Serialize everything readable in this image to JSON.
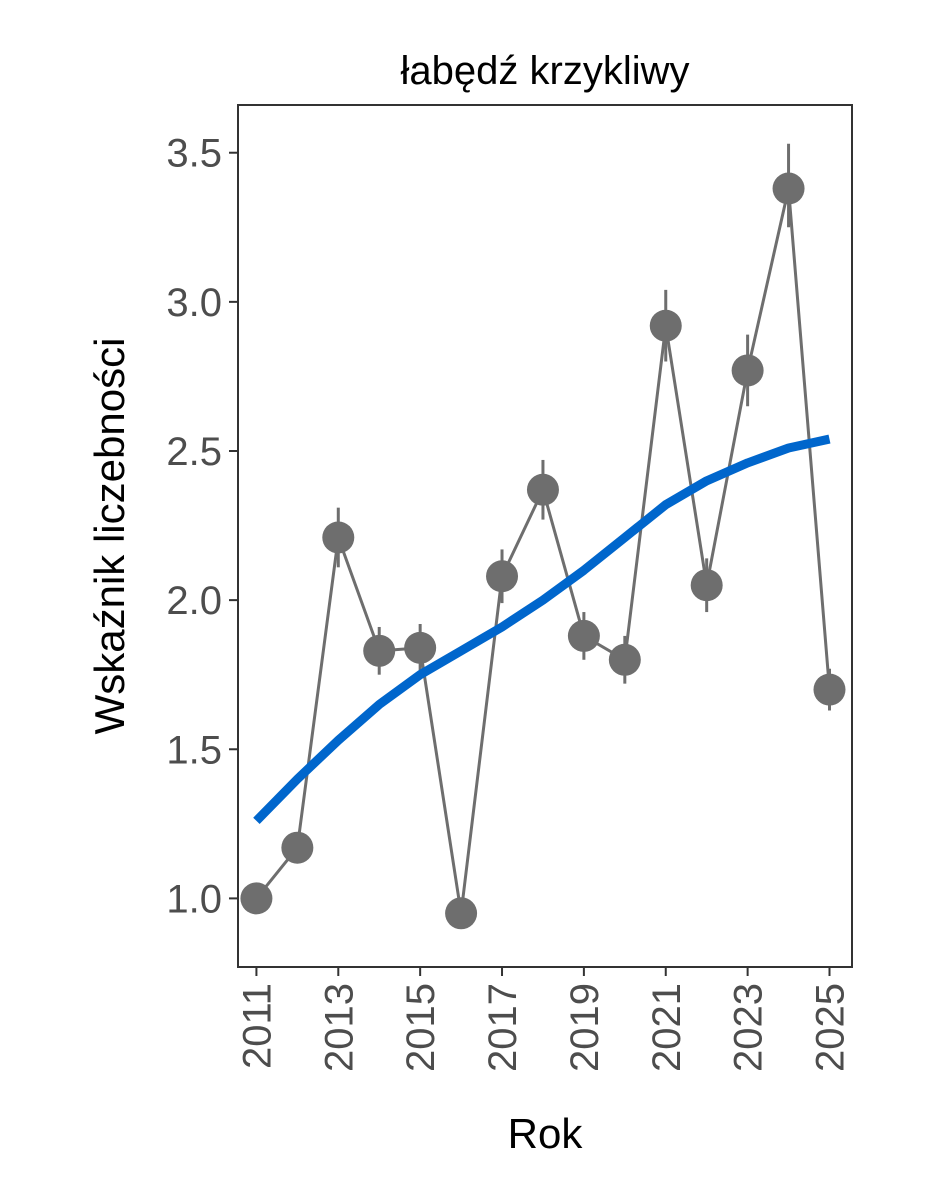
{
  "chart_data": {
    "type": "line",
    "title": "łabędź krzykliwy",
    "xlabel": "Rok",
    "ylabel": "Wskaźnik liczebności",
    "xlim": [
      2010.55,
      2025.55
    ],
    "ylim": [
      0.77,
      3.66
    ],
    "x_ticks": [
      2011,
      2013,
      2015,
      2017,
      2019,
      2021,
      2023,
      2025
    ],
    "y_ticks": [
      1.0,
      1.5,
      2.0,
      2.5,
      3.0,
      3.5
    ],
    "y_tick_labels": [
      "1.0",
      "1.5",
      "2.0",
      "2.5",
      "3.0",
      "3.5"
    ],
    "grid": false,
    "series": [
      {
        "kind": "points-with-errorbars",
        "color": "#6e6e6e",
        "x": [
          2011,
          2012,
          2013,
          2014,
          2015,
          2016,
          2017,
          2018,
          2019,
          2020,
          2021,
          2022,
          2023,
          2024,
          2025
        ],
        "y": [
          1.0,
          1.17,
          2.21,
          1.83,
          1.84,
          0.95,
          2.08,
          2.37,
          1.88,
          1.8,
          2.92,
          2.05,
          2.77,
          3.38,
          1.7
        ],
        "lower": [
          1.0,
          1.12,
          2.11,
          1.75,
          1.76,
          0.95,
          1.99,
          2.27,
          1.8,
          1.72,
          2.8,
          1.96,
          2.65,
          3.25,
          1.63
        ],
        "upper": [
          1.0,
          1.22,
          2.31,
          1.91,
          1.92,
          0.95,
          2.17,
          2.47,
          1.96,
          1.88,
          3.04,
          2.14,
          2.89,
          3.53,
          1.77
        ]
      },
      {
        "kind": "trend",
        "color": "#0066cc",
        "x": [
          2011,
          2012,
          2013,
          2014,
          2015,
          2016,
          2017,
          2018,
          2019,
          2020,
          2021,
          2022,
          2023,
          2024,
          2025
        ],
        "y": [
          1.26,
          1.4,
          1.53,
          1.65,
          1.75,
          1.83,
          1.91,
          2.0,
          2.1,
          2.21,
          2.32,
          2.4,
          2.46,
          2.51,
          2.54
        ]
      }
    ]
  }
}
